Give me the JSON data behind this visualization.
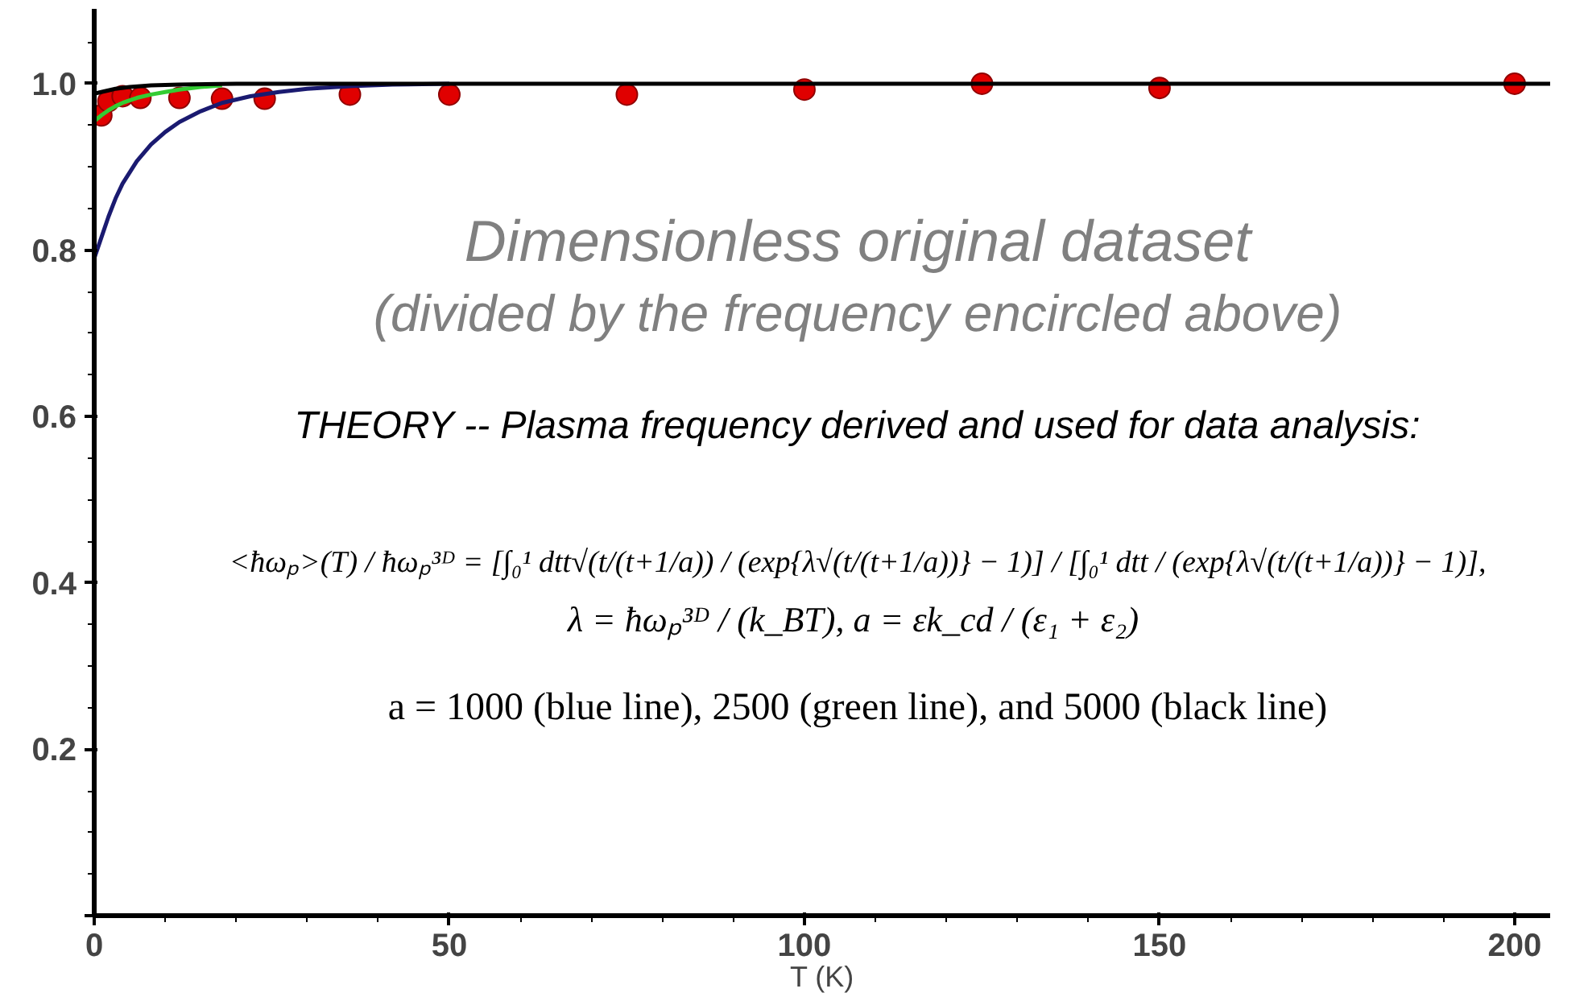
{
  "chart_data": {
    "type": "scatter",
    "xlabel": "T (K)",
    "xlim": [
      0,
      205
    ],
    "ylim": [
      0,
      1.09
    ],
    "xticks": [
      0,
      50,
      100,
      150,
      200
    ],
    "yticks": [
      {
        "value": 0,
        "label": null
      },
      0.2,
      0.4,
      0.6,
      0.8,
      {
        "value": 1.0,
        "label": "1.0"
      }
    ],
    "grid": false,
    "series": [
      {
        "type": "line",
        "color": "#1a1a70",
        "marker": "none",
        "line_style": "solid",
        "x": [
          0,
          1,
          2,
          3,
          4,
          6,
          8,
          10,
          12,
          15,
          18,
          22,
          26,
          30,
          36,
          42,
          50
        ],
        "values": [
          0.79,
          0.815,
          0.84,
          0.862,
          0.88,
          0.907,
          0.927,
          0.942,
          0.954,
          0.967,
          0.977,
          0.985,
          0.99,
          0.994,
          0.997,
          0.999,
          1.0
        ]
      },
      {
        "type": "line",
        "color": "#33cc33",
        "marker": "none",
        "line_style": "solid",
        "x": [
          0,
          1,
          2,
          3,
          4,
          6,
          8,
          10,
          12,
          15,
          18
        ],
        "values": [
          0.955,
          0.962,
          0.968,
          0.973,
          0.977,
          0.983,
          0.987,
          0.99,
          0.993,
          0.996,
          0.998
        ]
      },
      {
        "type": "line",
        "color": "#000000",
        "marker": "none",
        "line_style": "solid",
        "x": [
          0,
          1,
          2,
          3,
          5,
          8,
          12,
          20,
          50,
          100,
          150,
          205
        ],
        "values": [
          0.988,
          0.99,
          0.992,
          0.994,
          0.996,
          0.998,
          0.999,
          1.0,
          1.0,
          1.0,
          1.0,
          1.0
        ]
      },
      {
        "color": "#e00000",
        "marker": "circle",
        "x": [
          1,
          2,
          4,
          6.5,
          12,
          18,
          24,
          36,
          50,
          75,
          100,
          125,
          150,
          200
        ],
        "values": [
          0.962,
          0.979,
          0.985,
          0.983,
          0.983,
          0.982,
          0.982,
          0.987,
          0.987,
          0.987,
          0.993,
          1.0,
          0.995,
          1.0
        ]
      }
    ],
    "annotations": [
      "Dimensionless original dataset",
      "(divided by the frequency encircled above)",
      "THEORY -- Plasma frequency derived and used for data analysis:",
      "<ħωₚ>(T) / ħωₚ³ᴰ = [∫₀¹ dtt√(t/(t+1/a)) / (exp{λ√(t/(t+1/a))} − 1)] / [∫₀¹ dtt / (exp{λ√(t/(t+1/a))} − 1)],",
      "λ = ħωₚ³ᴰ / (k_BT),  a = εk_cd / (ε₁ + ε₂)",
      "a = 1000 (blue line), 2500 (green line), and 5000 (black line)"
    ]
  }
}
